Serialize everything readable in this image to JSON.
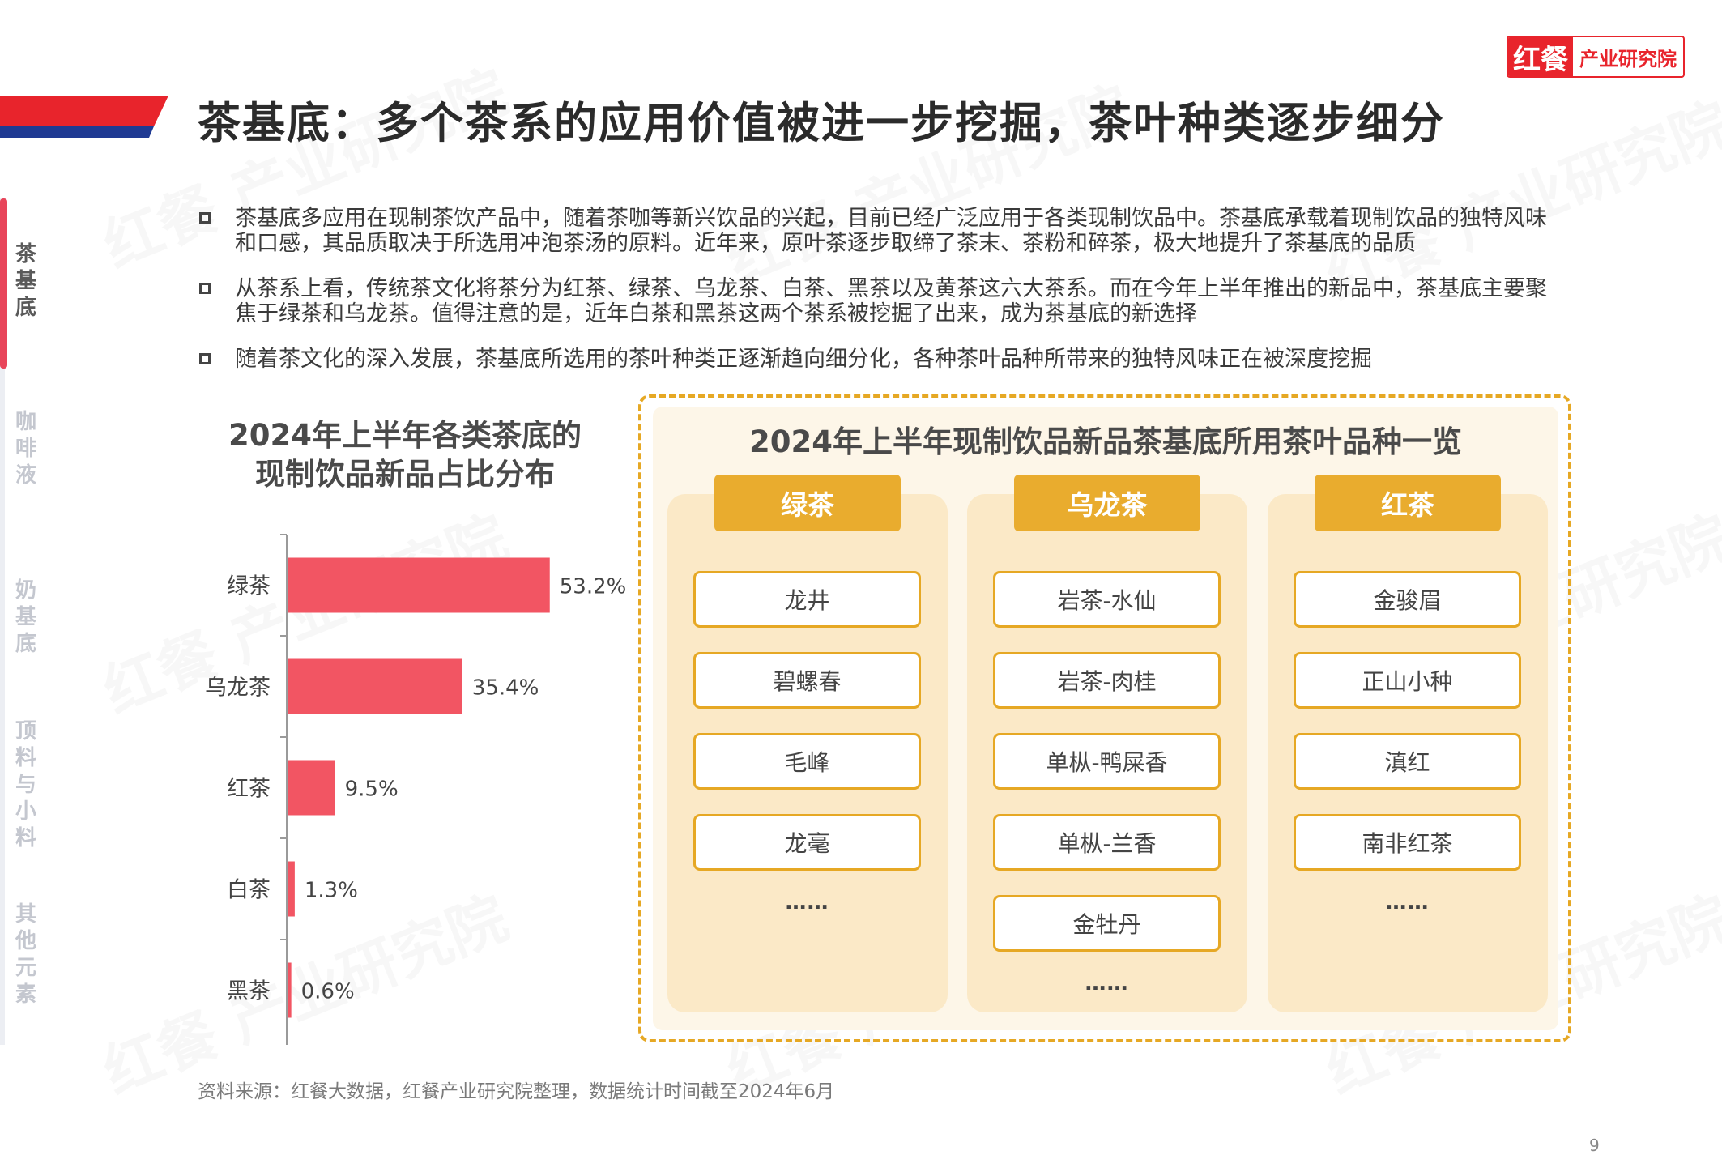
{
  "logo": {
    "mark": "红餐",
    "text": "产业研究院"
  },
  "title": "茶基底：多个茶系的应用价值被进一步挖掘，茶叶种类逐步细分",
  "side_nav": [
    "茶基底",
    "咖啡液",
    "奶基底",
    "顶料与小料",
    "其他元素"
  ],
  "side_nav_active": 0,
  "bullets": [
    "茶基底多应用在现制茶饮产品中，随着茶咖等新兴饮品的兴起，目前已经广泛应用于各类现制饮品中。茶基底承载着现制饮品的独特风味和口感，其品质取决于所选用冲泡茶汤的原料。近年来，原叶茶逐步取缔了茶末、茶粉和碎茶，极大地提升了茶基底的品质",
    "从茶系上看，传统茶文化将茶分为红茶、绿茶、乌龙茶、白茶、黑茶以及黄茶这六大茶系。而在今年上半年推出的新品中，茶基底主要聚焦于绿茶和乌龙茶。值得注意的是，近年白茶和黑茶这两个茶系被挖掘了出来，成为茶基底的新选择",
    "随着茶文化的深入发展，茶基底所选用的茶叶种类正逐渐趋向细分化，各种茶叶品种所带来的独特风味正在被深度挖掘"
  ],
  "chart_data": {
    "type": "bar",
    "orientation": "horizontal",
    "title_line1": "2024年上半年各类茶底的",
    "title_line2": "现制饮品新品占比分布",
    "categories": [
      "绿茶",
      "乌龙茶",
      "红茶",
      "白茶",
      "黑茶"
    ],
    "values": [
      53.2,
      35.4,
      9.5,
      1.3,
      0.6
    ],
    "value_labels": [
      "53.2%",
      "35.4%",
      "9.5%",
      "1.3%",
      "0.6%"
    ],
    "unit": "%",
    "xlim": [
      0,
      60
    ],
    "bar_color": "#f25563",
    "grid": false
  },
  "panel": {
    "title": "2024年上半年现制饮品新品茶基底所用茶叶品种一览",
    "columns": [
      {
        "name": "绿茶",
        "items": [
          "龙井",
          "碧螺春",
          "毛峰",
          "龙毫"
        ],
        "more": "……"
      },
      {
        "name": "乌龙茶",
        "items": [
          "岩茶-水仙",
          "岩茶-肉桂",
          "单枞-鸭屎香",
          "单枞-兰香",
          "金牡丹"
        ],
        "more": "……"
      },
      {
        "name": "红茶",
        "items": [
          "金骏眉",
          "正山小种",
          "滇红",
          "南非红茶"
        ],
        "more": "……"
      }
    ]
  },
  "source": "资料来源：红餐大数据，红餐产业研究院整理，数据统计时间截至2024年6月",
  "page_number": "9",
  "watermark": "红餐 产业研究院",
  "colors": {
    "brand_red": "#e8242c",
    "accent_blue": "#1f3a93",
    "gold": "#e9ac2e",
    "bar": "#f25563"
  }
}
